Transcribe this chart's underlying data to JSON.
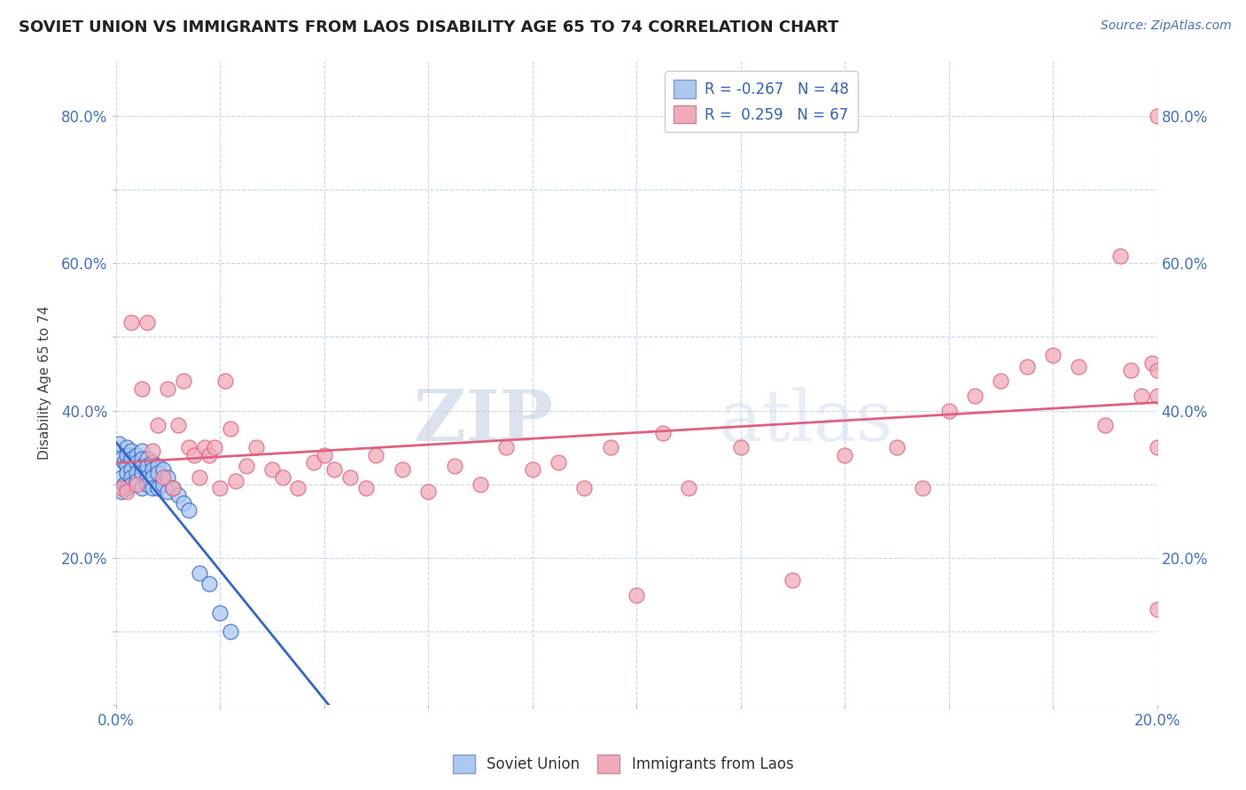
{
  "title": "SOVIET UNION VS IMMIGRANTS FROM LAOS DISABILITY AGE 65 TO 74 CORRELATION CHART",
  "source_text": "Source: ZipAtlas.com",
  "ylabel": "Disability Age 65 to 74",
  "xlim": [
    0.0,
    0.2
  ],
  "ylim": [
    0.0,
    0.875
  ],
  "x_ticks": [
    0.0,
    0.02,
    0.04,
    0.06,
    0.08,
    0.1,
    0.12,
    0.14,
    0.16,
    0.18,
    0.2
  ],
  "y_ticks": [
    0.0,
    0.1,
    0.2,
    0.3,
    0.4,
    0.5,
    0.6,
    0.7,
    0.8
  ],
  "y_tick_labels": [
    "",
    "",
    "20.0%",
    "",
    "40.0%",
    "",
    "60.0%",
    "",
    "80.0%"
  ],
  "legend_R1": "-0.267",
  "legend_N1": "48",
  "legend_R2": "0.259",
  "legend_N2": "67",
  "soviet_color": "#aac8f0",
  "laos_color": "#f0aab8",
  "soviet_line_color": "#3366cc",
  "laos_line_color": "#e06080",
  "watermark_zip": "ZIP",
  "watermark_atlas": "atlas",
  "background_color": "#ffffff",
  "soviet_x": [
    0.0005,
    0.001,
    0.001,
    0.001,
    0.0015,
    0.0015,
    0.002,
    0.002,
    0.002,
    0.002,
    0.002,
    0.003,
    0.003,
    0.003,
    0.003,
    0.003,
    0.004,
    0.004,
    0.004,
    0.004,
    0.005,
    0.005,
    0.005,
    0.005,
    0.005,
    0.006,
    0.006,
    0.006,
    0.006,
    0.007,
    0.007,
    0.007,
    0.007,
    0.008,
    0.008,
    0.008,
    0.009,
    0.009,
    0.01,
    0.01,
    0.011,
    0.012,
    0.013,
    0.014,
    0.016,
    0.018,
    0.02,
    0.022
  ],
  "soviet_y": [
    0.355,
    0.335,
    0.31,
    0.29,
    0.33,
    0.3,
    0.35,
    0.34,
    0.325,
    0.315,
    0.295,
    0.345,
    0.335,
    0.32,
    0.31,
    0.3,
    0.34,
    0.33,
    0.315,
    0.305,
    0.345,
    0.335,
    0.325,
    0.315,
    0.295,
    0.335,
    0.325,
    0.31,
    0.3,
    0.33,
    0.32,
    0.31,
    0.295,
    0.325,
    0.315,
    0.295,
    0.32,
    0.3,
    0.31,
    0.29,
    0.295,
    0.285,
    0.275,
    0.265,
    0.18,
    0.165,
    0.125,
    0.1
  ],
  "laos_x": [
    0.001,
    0.002,
    0.003,
    0.004,
    0.005,
    0.006,
    0.007,
    0.008,
    0.009,
    0.01,
    0.011,
    0.012,
    0.013,
    0.014,
    0.015,
    0.016,
    0.017,
    0.018,
    0.019,
    0.02,
    0.021,
    0.022,
    0.023,
    0.025,
    0.027,
    0.03,
    0.032,
    0.035,
    0.038,
    0.04,
    0.042,
    0.045,
    0.048,
    0.05,
    0.055,
    0.06,
    0.065,
    0.07,
    0.075,
    0.08,
    0.085,
    0.09,
    0.095,
    0.1,
    0.105,
    0.11,
    0.12,
    0.13,
    0.14,
    0.15,
    0.155,
    0.16,
    0.165,
    0.17,
    0.175,
    0.18,
    0.185,
    0.19,
    0.193,
    0.195,
    0.197,
    0.199,
    0.2,
    0.2,
    0.2,
    0.2,
    0.2
  ],
  "laos_y": [
    0.295,
    0.29,
    0.52,
    0.3,
    0.43,
    0.52,
    0.345,
    0.38,
    0.31,
    0.43,
    0.295,
    0.38,
    0.44,
    0.35,
    0.34,
    0.31,
    0.35,
    0.34,
    0.35,
    0.295,
    0.44,
    0.375,
    0.305,
    0.325,
    0.35,
    0.32,
    0.31,
    0.295,
    0.33,
    0.34,
    0.32,
    0.31,
    0.295,
    0.34,
    0.32,
    0.29,
    0.325,
    0.3,
    0.35,
    0.32,
    0.33,
    0.295,
    0.35,
    0.15,
    0.37,
    0.295,
    0.35,
    0.17,
    0.34,
    0.35,
    0.295,
    0.4,
    0.42,
    0.44,
    0.46,
    0.475,
    0.46,
    0.38,
    0.61,
    0.455,
    0.42,
    0.465,
    0.455,
    0.13,
    0.8,
    0.42,
    0.35
  ]
}
